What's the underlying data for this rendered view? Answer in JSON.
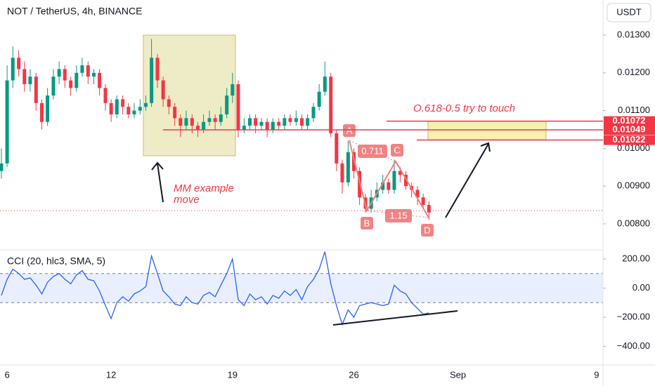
{
  "chart_data": [
    {
      "type": "candlestick",
      "title": "NOT / TetherUS, 4h, BINANCE",
      "currency": "USDT",
      "up_color": "#089981",
      "down_color": "#f23645",
      "xlim": [
        5.59,
        40.37
      ],
      "ylim": [
        0.00733,
        0.01393
      ],
      "yticks": [
        {
          "value": 0.013,
          "label": "0.01300"
        },
        {
          "value": 0.012,
          "label": "0.01200"
        },
        {
          "value": 0.011,
          "label": "0.01100"
        },
        {
          "value": 0.01,
          "label": "0.01000"
        },
        {
          "value": 0.009,
          "label": "0.00900"
        },
        {
          "value": 0.008,
          "label": "0.00800"
        }
      ],
      "levels": [
        {
          "value": 0.01072,
          "label": "0.01072"
        },
        {
          "value": 0.01049,
          "label": "0.01049"
        },
        {
          "value": 0.01022,
          "label": "0.01022"
        }
      ],
      "level_color": "#f23645",
      "price_line": 0.00835,
      "annotations": [
        "O.618-0.5 try to touch",
        "MM example",
        "move"
      ],
      "pattern_points": [
        "A",
        "B",
        "C",
        "D"
      ],
      "pattern_ratios": [
        "0.711",
        "1.15"
      ],
      "x": [
        5.67,
        6.0,
        6.33,
        6.67,
        7.0,
        7.33,
        7.67,
        8.0,
        8.33,
        8.67,
        9.0,
        9.33,
        9.67,
        10.0,
        10.33,
        10.67,
        11.0,
        11.33,
        11.67,
        12.0,
        12.33,
        12.67,
        13.0,
        13.33,
        13.67,
        14.0,
        14.33,
        14.67,
        15.0,
        15.33,
        15.67,
        16.0,
        16.33,
        16.67,
        17.0,
        17.33,
        17.67,
        18.0,
        18.33,
        18.67,
        19.0,
        19.33,
        19.67,
        20.0,
        20.33,
        20.67,
        21.0,
        21.33,
        21.67,
        22.0,
        22.33,
        22.67,
        23.0,
        23.33,
        23.67,
        24.0,
        24.33,
        24.67,
        25.0,
        25.33,
        25.67,
        26.0,
        26.33,
        26.67,
        27.0,
        27.33,
        27.67,
        28.0,
        28.33,
        28.67,
        29.0,
        29.33,
        29.67,
        30.0,
        30.33
      ],
      "open": [
        0.0094,
        0.0096,
        0.0118,
        0.0124,
        0.0121,
        0.0117,
        0.0119,
        0.0112,
        0.0107,
        0.0114,
        0.0119,
        0.0121,
        0.0118,
        0.0116,
        0.012,
        0.0122,
        0.0119,
        0.012,
        0.0116,
        0.0112,
        0.0109,
        0.0113,
        0.0111,
        0.0109,
        0.011,
        0.0111,
        0.0112,
        0.0124,
        0.0118,
        0.0113,
        0.0111,
        0.0108,
        0.0106,
        0.0108,
        0.0106,
        0.0105,
        0.0107,
        0.0108,
        0.0107,
        0.0109,
        0.0114,
        0.0117,
        0.0105,
        0.0106,
        0.0108,
        0.0106,
        0.0107,
        0.0105,
        0.0107,
        0.0106,
        0.0108,
        0.0107,
        0.0108,
        0.0106,
        0.0108,
        0.0111,
        0.0115,
        0.0119,
        0.0104,
        0.0096,
        0.0091,
        0.0099,
        0.0094,
        0.0087,
        0.0084,
        0.0087,
        0.0089,
        0.0091,
        0.0089,
        0.0094,
        0.0093,
        0.009,
        0.0089,
        0.0087,
        0.0085
      ],
      "high": [
        0.01,
        0.0122,
        0.0127,
        0.0126,
        0.0123,
        0.0121,
        0.012,
        0.0113,
        0.0116,
        0.0121,
        0.0123,
        0.0122,
        0.0119,
        0.0122,
        0.0124,
        0.0123,
        0.0121,
        0.0121,
        0.0117,
        0.0113,
        0.0114,
        0.0114,
        0.0112,
        0.0112,
        0.0113,
        0.0114,
        0.0129,
        0.0125,
        0.0119,
        0.0114,
        0.0112,
        0.0109,
        0.011,
        0.0109,
        0.0107,
        0.0109,
        0.011,
        0.0109,
        0.0111,
        0.0116,
        0.012,
        0.0118,
        0.0108,
        0.0109,
        0.0109,
        0.0108,
        0.0108,
        0.0108,
        0.0108,
        0.0109,
        0.0109,
        0.011,
        0.0109,
        0.0109,
        0.0112,
        0.0117,
        0.0123,
        0.012,
        0.0105,
        0.0097,
        0.0102,
        0.01,
        0.0095,
        0.0088,
        0.0089,
        0.0091,
        0.0093,
        0.0092,
        0.0097,
        0.0095,
        0.0094,
        0.0091,
        0.009,
        0.0088,
        0.0086
      ],
      "low": [
        0.0092,
        0.0095,
        0.0116,
        0.0119,
        0.0115,
        0.0115,
        0.011,
        0.0105,
        0.0106,
        0.0113,
        0.0117,
        0.0116,
        0.0114,
        0.0115,
        0.0119,
        0.0117,
        0.0117,
        0.0114,
        0.011,
        0.0107,
        0.0108,
        0.0109,
        0.0108,
        0.0108,
        0.0109,
        0.011,
        0.0111,
        0.0116,
        0.0111,
        0.0109,
        0.0106,
        0.0103,
        0.0105,
        0.0104,
        0.0103,
        0.0104,
        0.0106,
        0.0105,
        0.0106,
        0.0108,
        0.0112,
        0.0103,
        0.0104,
        0.0105,
        0.0104,
        0.0105,
        0.0103,
        0.0104,
        0.0105,
        0.0105,
        0.0106,
        0.0106,
        0.0105,
        0.0105,
        0.0107,
        0.011,
        0.0114,
        0.0103,
        0.0094,
        0.0088,
        0.009,
        0.0092,
        0.0085,
        0.0083,
        0.0083,
        0.0086,
        0.0088,
        0.0088,
        0.0088,
        0.0091,
        0.0089,
        0.0087,
        0.0085,
        0.0084,
        0.0081
      ],
      "close": [
        0.0096,
        0.0118,
        0.0124,
        0.0121,
        0.0117,
        0.0119,
        0.0112,
        0.0107,
        0.0114,
        0.0119,
        0.0121,
        0.0118,
        0.0116,
        0.012,
        0.0122,
        0.0119,
        0.012,
        0.0116,
        0.0112,
        0.0109,
        0.0113,
        0.0111,
        0.0109,
        0.011,
        0.0111,
        0.0112,
        0.0124,
        0.0118,
        0.0113,
        0.0111,
        0.0108,
        0.0106,
        0.0108,
        0.0106,
        0.0105,
        0.0107,
        0.0108,
        0.0107,
        0.0109,
        0.0114,
        0.0117,
        0.0105,
        0.0106,
        0.0108,
        0.0106,
        0.0107,
        0.0105,
        0.0107,
        0.0106,
        0.0108,
        0.0107,
        0.0108,
        0.0106,
        0.0108,
        0.0111,
        0.0115,
        0.0119,
        0.0104,
        0.0096,
        0.0091,
        0.0099,
        0.0094,
        0.0087,
        0.0084,
        0.0087,
        0.0089,
        0.0091,
        0.0089,
        0.0094,
        0.0093,
        0.009,
        0.0089,
        0.0087,
        0.0085,
        0.0083
      ]
    },
    {
      "type": "line",
      "title": "CCI (20, hlc3, SMA, 5)",
      "color": "#2962ff",
      "band": [
        -100,
        100
      ],
      "xlim": [
        5.59,
        40.37
      ],
      "ylim": [
        -528,
        253
      ],
      "yticks": [
        {
          "value": 200,
          "label": "200.00"
        },
        {
          "value": 0,
          "label": "0.00"
        },
        {
          "value": -200,
          "label": "−200.00"
        },
        {
          "value": -400,
          "label": "−400.00"
        }
      ],
      "xticks": [
        6,
        12,
        19,
        26,
        {
          "value": 32,
          "label": "Sep"
        },
        {
          "value": 40,
          "label": "9"
        }
      ],
      "x": [
        5.67,
        6.0,
        6.33,
        6.67,
        7.0,
        7.33,
        7.67,
        8.0,
        8.33,
        8.67,
        9.0,
        9.33,
        9.67,
        10.0,
        10.33,
        10.67,
        11.0,
        11.33,
        11.67,
        12.0,
        12.33,
        12.67,
        13.0,
        13.33,
        13.67,
        14.0,
        14.33,
        14.67,
        15.0,
        15.33,
        15.67,
        16.0,
        16.33,
        16.67,
        17.0,
        17.33,
        17.67,
        18.0,
        18.33,
        18.67,
        19.0,
        19.33,
        19.67,
        20.0,
        20.33,
        20.67,
        21.0,
        21.33,
        21.67,
        22.0,
        22.33,
        22.67,
        23.0,
        23.33,
        23.67,
        24.0,
        24.33,
        24.67,
        25.0,
        25.33,
        25.67,
        26.0,
        26.33,
        26.67,
        27.0,
        27.33,
        27.67,
        28.0,
        28.33,
        28.67,
        29.0,
        29.33,
        29.67,
        30.0,
        30.33
      ],
      "values": [
        -50,
        60,
        130,
        100,
        60,
        70,
        20,
        -40,
        40,
        80,
        100,
        60,
        30,
        90,
        120,
        60,
        50,
        -20,
        -120,
        -210,
        -100,
        -60,
        -90,
        -40,
        -20,
        10,
        220,
        100,
        -20,
        -60,
        -110,
        -120,
        -60,
        -100,
        -110,
        -50,
        -30,
        -60,
        20,
        100,
        200,
        -80,
        -120,
        -40,
        -80,
        -60,
        -110,
        -50,
        -70,
        -20,
        -50,
        -10,
        -80,
        10,
        60,
        130,
        250,
        30,
        -120,
        -250,
        -150,
        -200,
        -120,
        -110,
        -100,
        -110,
        -120,
        -110,
        20,
        -20,
        -40,
        -100,
        -140,
        -180,
        -170
      ]
    }
  ]
}
